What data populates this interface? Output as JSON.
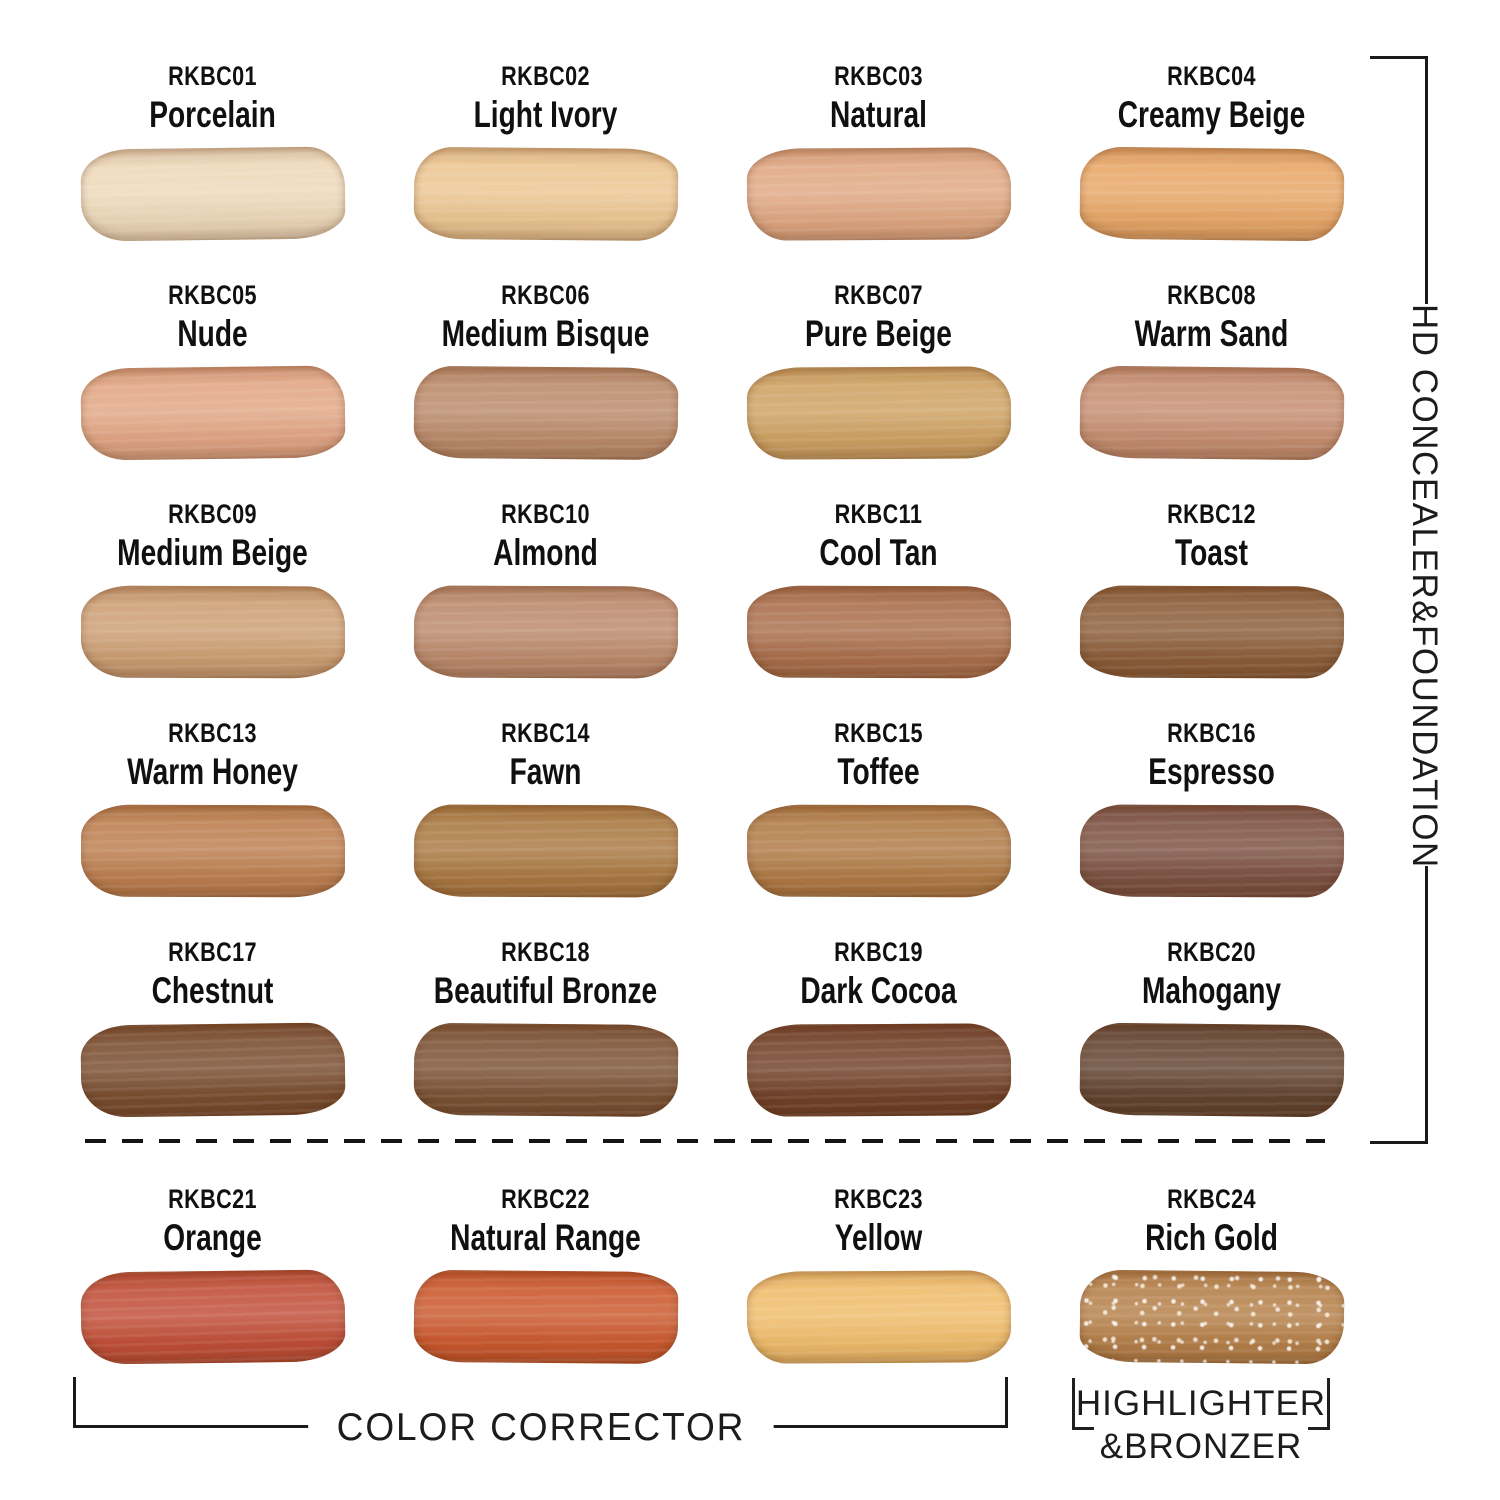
{
  "shades": [
    {
      "code": "RKBC01",
      "name": "Porcelain",
      "color": "#eed9ba"
    },
    {
      "code": "RKBC02",
      "name": "Light Ivory",
      "color": "#ecc692"
    },
    {
      "code": "RKBC03",
      "name": "Natural",
      "color": "#e0a883"
    },
    {
      "code": "RKBC04",
      "name": "Creamy Beige",
      "color": "#e8a768"
    },
    {
      "code": "RKBC05",
      "name": "Nude",
      "color": "#e2a685"
    },
    {
      "code": "RKBC06",
      "name": "Medium Bisque",
      "color": "#bb8b6b"
    },
    {
      "code": "RKBC07",
      "name": "Pure Beige",
      "color": "#cfa263"
    },
    {
      "code": "RKBC08",
      "name": "Warm Sand",
      "color": "#c68e71"
    },
    {
      "code": "RKBC09",
      "name": "Medium Beige",
      "color": "#cd9f74"
    },
    {
      "code": "RKBC10",
      "name": "Almond",
      "color": "#bc8a6c"
    },
    {
      "code": "RKBC11",
      "name": "Cool Tan",
      "color": "#aa6f4c"
    },
    {
      "code": "RKBC12",
      "name": "Toast",
      "color": "#8c5e3a"
    },
    {
      "code": "RKBC13",
      "name": "Warm Honey",
      "color": "#bd7f50"
    },
    {
      "code": "RKBC14",
      "name": "Fawn",
      "color": "#aa7942"
    },
    {
      "code": "RKBC15",
      "name": "Toffee",
      "color": "#b07b46"
    },
    {
      "code": "RKBC16",
      "name": "Espresso",
      "color": "#7d5243"
    },
    {
      "code": "RKBC17",
      "name": "Chestnut",
      "color": "#7a4e30"
    },
    {
      "code": "RKBC18",
      "name": "Beautiful Bronze",
      "color": "#7c5336"
    },
    {
      "code": "RKBC19",
      "name": "Dark Cocoa",
      "color": "#73422a"
    },
    {
      "code": "RKBC20",
      "name": "Mahogany",
      "color": "#634431"
    },
    {
      "code": "RKBC21",
      "name": "Orange",
      "color": "#c14f39"
    },
    {
      "code": "RKBC22",
      "name": "Natural Range",
      "color": "#cb592e"
    },
    {
      "code": "RKBC23",
      "name": "Yellow",
      "color": "#f0bd6c"
    },
    {
      "code": "RKBC24",
      "name": "Rich Gold",
      "color": "#b5804a"
    }
  ],
  "groups": {
    "concealer_foundation": "HD CONCEALER&FOUNDATION",
    "color_corrector": "COLOR CORRECTOR",
    "highlighter_line1": "HIGHLIGHTER",
    "highlighter_line2": "&BRONZER"
  },
  "colors": {
    "line": "#1a1a1a",
    "text": "#101010",
    "background": "#ffffff"
  }
}
